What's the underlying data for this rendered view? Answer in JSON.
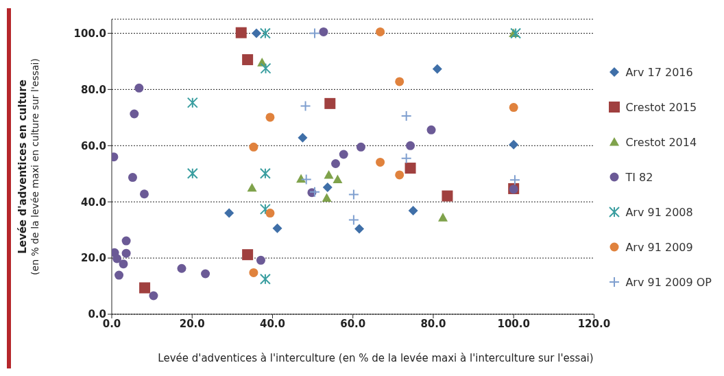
{
  "chart_data": {
    "type": "scatter",
    "xlabel": "Levée d'adventices à l'interculture (en % de la levée maxi à l'interculture sur l'essai)",
    "ylabel": "Levée d'adventices en culture\n(en % de la levée maxi en culture sur l'essai)",
    "xlim": [
      0,
      120
    ],
    "xticks": [
      {
        "value": 0,
        "label": "0.0"
      },
      {
        "value": 20,
        "label": "20.0"
      },
      {
        "value": 40,
        "label": "40.0"
      },
      {
        "value": 60,
        "label": "60.0"
      },
      {
        "value": 80,
        "label": "80.0"
      },
      {
        "value": 100,
        "label": "100.0"
      },
      {
        "value": 120,
        "label": "120.0"
      }
    ],
    "ylim": [
      0,
      105
    ],
    "yticks": [
      {
        "value": 0,
        "label": "0.0"
      },
      {
        "value": 20,
        "label": "20.0"
      },
      {
        "value": 40,
        "label": "40.0"
      },
      {
        "value": 60,
        "label": "60.0"
      },
      {
        "value": 80,
        "label": "80.0"
      },
      {
        "value": 100,
        "label": "100.0"
      }
    ],
    "grid": "y",
    "legend": "right",
    "series": [
      {
        "name": "Arv 17 2016",
        "color": "#3f6fa8",
        "marker": "diamond",
        "x": [
          36.0,
          47.5,
          29.2,
          41.2,
          53.7,
          81.0,
          100.0,
          75.0,
          61.6
        ],
        "values": [
          100.0,
          62.8,
          36.0,
          30.6,
          45.2,
          87.3,
          60.4,
          36.9,
          30.4
        ]
      },
      {
        "name": "Crestot 2015",
        "color": "#a0403f",
        "marker": "square",
        "x": [
          32.2,
          33.8,
          54.3,
          74.3,
          83.5,
          100.0,
          33.8,
          8.2
        ],
        "values": [
          100.2,
          90.6,
          75.0,
          52.0,
          42.1,
          44.7,
          21.2,
          9.4
        ]
      },
      {
        "name": "Crestot 2014",
        "color": "#7fa24b",
        "marker": "triangle",
        "x": [
          37.4,
          100.0,
          34.9,
          47.1,
          54.0,
          56.2,
          53.5,
          82.4
        ],
        "values": [
          89.6,
          100.0,
          45.0,
          48.2,
          49.6,
          48.0,
          41.4,
          34.4
        ]
      },
      {
        "name": "TI 82",
        "color": "#6b5a96",
        "marker": "circle",
        "x": [
          0.5,
          6.8,
          5.6,
          5.2,
          8.1,
          52.7,
          79.5,
          74.3,
          62.0,
          57.7,
          55.7,
          49.8,
          3.6,
          0.7,
          3.6,
          1.3,
          2.9,
          1.8,
          17.4,
          23.3,
          10.4,
          37.1,
          100.0
        ],
        "values": [
          56.0,
          80.5,
          71.3,
          48.7,
          42.8,
          100.5,
          65.6,
          60.0,
          59.5,
          56.9,
          53.6,
          43.3,
          26.1,
          21.9,
          21.7,
          19.8,
          17.9,
          13.9,
          16.3,
          14.4,
          6.6,
          19.2,
          44.5
        ]
      },
      {
        "name": "Arv 91 2008",
        "color": "#3a9ea0",
        "x": [
          38.2,
          38.3,
          20.1,
          20.1,
          38.2,
          38.2,
          38.2,
          100.5
        ],
        "values": [
          100.0,
          87.5,
          75.3,
          50.1,
          50.1,
          37.4,
          12.5,
          100.0
        ]
      },
      {
        "name": "Arv 91 2009",
        "color": "#e0823d",
        "marker": "circle",
        "x": [
          66.8,
          71.6,
          39.4,
          35.3,
          39.4,
          35.3,
          66.8,
          71.6,
          100.0
        ],
        "values": [
          100.5,
          82.8,
          70.1,
          59.5,
          36.0,
          14.8,
          54.1,
          49.6,
          73.6
        ]
      },
      {
        "name": "Arv 91 2009 OP",
        "color": "#7f9fcf",
        "marker": "cross",
        "x": [
          50.5,
          48.2,
          73.3,
          73.3,
          48.4,
          50.5,
          60.2,
          60.2,
          100.3
        ],
        "values": [
          100.0,
          74.1,
          70.6,
          55.5,
          48.0,
          43.5,
          42.6,
          33.6,
          47.8
        ]
      }
    ]
  }
}
